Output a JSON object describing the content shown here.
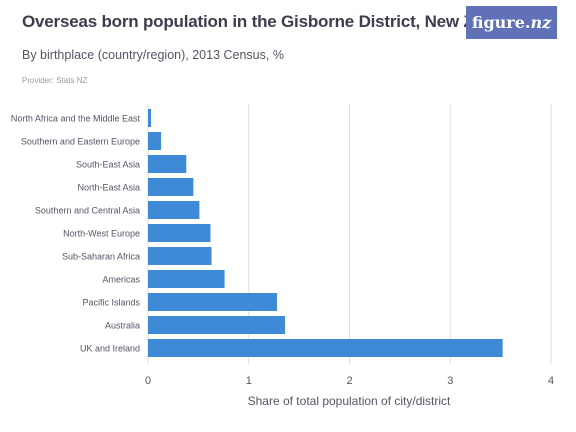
{
  "header": {
    "title": "Overseas born population in the Gisborne District, New Zealand",
    "subtitle": "By birthplace (country/region), 2013 Census, %",
    "provider": "Provider: Stats NZ"
  },
  "logo": {
    "text_main": "figure.",
    "text_accent": "nz"
  },
  "colors": {
    "bar": "#3e8ad6",
    "grid": "#dddddd",
    "axis_text": "#555566",
    "logo_bg": "#6171b8"
  },
  "chart_data": {
    "type": "bar",
    "orientation": "horizontal",
    "categories": [
      "North Africa and the Middle East",
      "Southern and Eastern Europe",
      "South-East Asia",
      "North-East Asia",
      "Southern and Central Asia",
      "North-West Europe",
      "Sub-Saharan Africa",
      "Americas",
      "Pacific Islands",
      "Australia",
      "UK and Ireland"
    ],
    "values": [
      0.03,
      0.13,
      0.38,
      0.45,
      0.51,
      0.62,
      0.63,
      0.76,
      1.28,
      1.36,
      3.52
    ],
    "xlabel": "Share of total population of city/district",
    "xlim": [
      0,
      4
    ],
    "xticks": [
      0,
      1,
      2,
      3,
      4
    ],
    "grid": true
  }
}
